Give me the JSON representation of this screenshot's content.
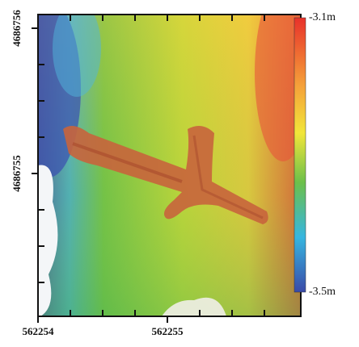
{
  "map": {
    "x_labels": [
      "562254",
      "562255"
    ],
    "y_labels": [
      "4686756",
      "4686755"
    ],
    "colorbar": {
      "max_label": "-3.1m",
      "min_label": "-3.5m"
    }
  }
}
